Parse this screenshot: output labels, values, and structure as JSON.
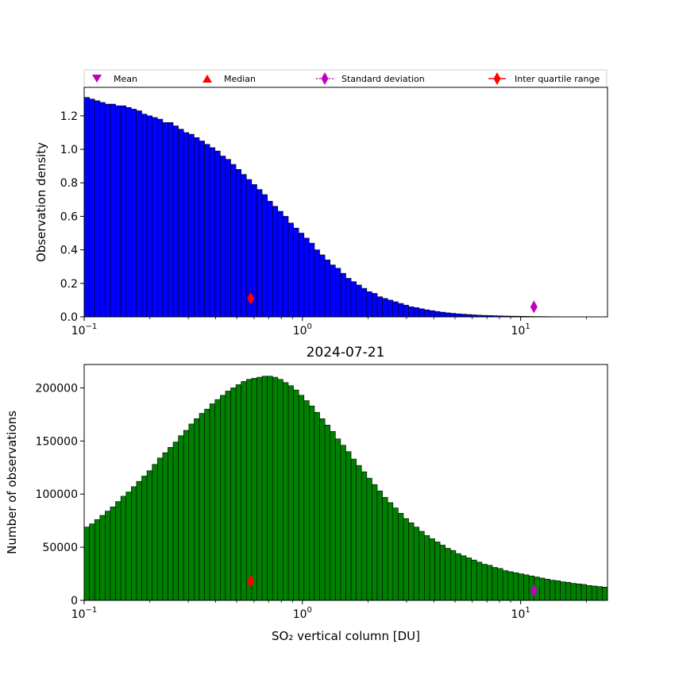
{
  "legend": {
    "placement": "top",
    "entries": [
      {
        "label": "Mean",
        "marker": "triangle-down",
        "color": "#bf00bf"
      },
      {
        "label": "Median",
        "marker": "triangle-up",
        "color": "#ff0000"
      },
      {
        "label": "Standard deviation",
        "marker": "diamond",
        "line": "dotted",
        "color": "#bf00bf"
      },
      {
        "label": "Inter quartile range",
        "marker": "diamond",
        "line": "solid",
        "color": "#ff0000"
      }
    ]
  },
  "chart_data": [
    {
      "type": "bar",
      "panel": "top",
      "title": "",
      "xlabel": "",
      "ylabel": "Observation density",
      "xscale": "log",
      "xlim": [
        0.1,
        25
      ],
      "ylim": [
        0,
        1.37
      ],
      "yticks": [
        0.0,
        0.2,
        0.4,
        0.6,
        0.8,
        1.0,
        1.2
      ],
      "ytick_labels": [
        "0.0",
        "0.2",
        "0.4",
        "0.6",
        "0.8",
        "1.0",
        "1.2"
      ],
      "xticks": [
        0.1,
        1,
        10
      ],
      "xtick_base": "10",
      "xtick_exponents": [
        "−1",
        "0",
        "1"
      ],
      "bar_color": "#0000ff",
      "bins": {
        "start": 0.1,
        "stop": 25,
        "count": 100,
        "spacing": "log"
      },
      "values": [
        1.31,
        1.3,
        1.29,
        1.28,
        1.27,
        1.27,
        1.26,
        1.26,
        1.25,
        1.24,
        1.23,
        1.21,
        1.2,
        1.19,
        1.18,
        1.16,
        1.16,
        1.14,
        1.12,
        1.1,
        1.09,
        1.07,
        1.05,
        1.03,
        1.01,
        0.99,
        0.96,
        0.94,
        0.91,
        0.88,
        0.85,
        0.82,
        0.79,
        0.76,
        0.73,
        0.69,
        0.66,
        0.63,
        0.6,
        0.56,
        0.53,
        0.5,
        0.47,
        0.44,
        0.4,
        0.37,
        0.34,
        0.31,
        0.29,
        0.26,
        0.23,
        0.21,
        0.19,
        0.17,
        0.15,
        0.14,
        0.12,
        0.11,
        0.1,
        0.09,
        0.08,
        0.07,
        0.06,
        0.055,
        0.048,
        0.042,
        0.037,
        0.032,
        0.028,
        0.024,
        0.021,
        0.018,
        0.016,
        0.014,
        0.012,
        0.01,
        0.009,
        0.008,
        0.007,
        0.006,
        0.005,
        0.0045,
        0.004,
        0.0035,
        0.003,
        0.0025,
        0.002,
        0.0017,
        0.0015,
        0.0012,
        0.001,
        0.0009,
        0.0008,
        0.0007,
        0.0006,
        0.0005,
        0.0004,
        0.0003,
        0.0003,
        0.0002
      ],
      "markers": [
        {
          "kind": "iqr",
          "x": 0.58,
          "y": 0.11,
          "color": "#ff0000"
        },
        {
          "kind": "std",
          "x": 11.5,
          "y": 0.06,
          "color": "#bf00bf"
        }
      ]
    },
    {
      "type": "bar",
      "panel": "bottom",
      "title": "2024-07-21",
      "xlabel": "SO₂ vertical column [DU]",
      "ylabel": "Number of observations",
      "xscale": "log",
      "xlim": [
        0.1,
        25
      ],
      "ylim": [
        0,
        222000
      ],
      "yticks": [
        0,
        50000,
        100000,
        150000,
        200000
      ],
      "ytick_labels": [
        "0",
        "50000",
        "100000",
        "150000",
        "200000"
      ],
      "xticks": [
        0.1,
        1,
        10
      ],
      "xtick_base": "10",
      "xtick_exponents": [
        "−1",
        "0",
        "1"
      ],
      "bar_color": "#008000",
      "bins": {
        "start": 0.1,
        "stop": 25,
        "count": 100,
        "spacing": "log"
      },
      "values": [
        69000,
        72000,
        76000,
        80000,
        84000,
        88000,
        93000,
        98000,
        102000,
        107000,
        112000,
        117000,
        122000,
        128000,
        134000,
        139000,
        144000,
        149000,
        155000,
        160000,
        166000,
        171000,
        176000,
        180000,
        185000,
        189000,
        193000,
        197000,
        200000,
        203000,
        206000,
        208000,
        209000,
        210000,
        211000,
        211000,
        210000,
        208000,
        205000,
        202000,
        198000,
        193000,
        188000,
        183000,
        177000,
        171000,
        165000,
        159000,
        152000,
        146000,
        140000,
        133000,
        127000,
        121000,
        115000,
        109000,
        103000,
        97000,
        92000,
        87000,
        82000,
        77000,
        73000,
        69000,
        65000,
        61000,
        58000,
        55000,
        52000,
        49000,
        47000,
        44000,
        42000,
        40000,
        38000,
        36000,
        34000,
        33000,
        31000,
        30000,
        28000,
        27000,
        26000,
        25000,
        24000,
        23000,
        22000,
        21000,
        20000,
        19000,
        18500,
        17500,
        17000,
        16000,
        15500,
        15000,
        14000,
        13500,
        13000,
        12500
      ],
      "markers": [
        {
          "kind": "iqr",
          "x": 0.58,
          "y": 18000,
          "color": "#ff0000"
        },
        {
          "kind": "std",
          "x": 11.5,
          "y": 9000,
          "color": "#bf00bf"
        }
      ]
    }
  ]
}
